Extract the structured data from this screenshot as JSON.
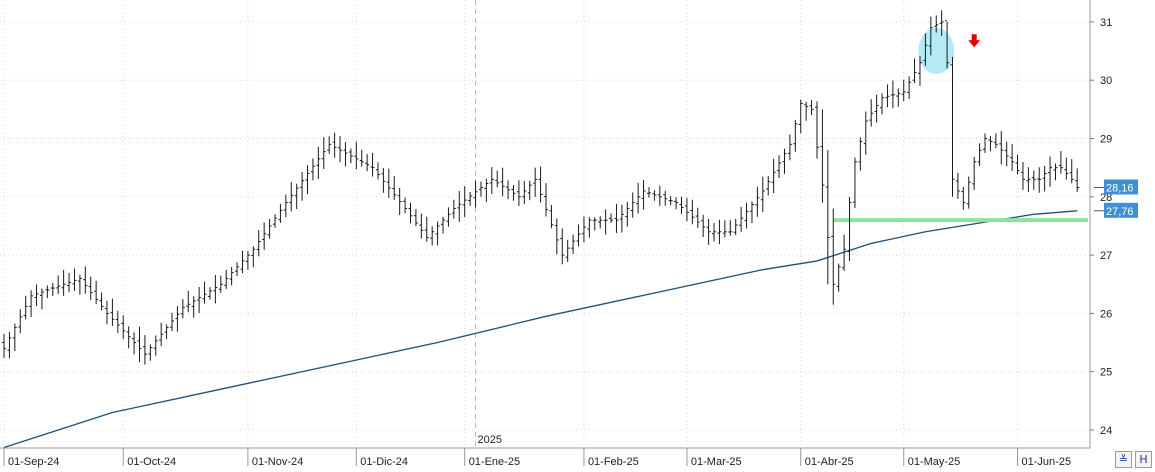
{
  "chart_data": {
    "type": "ohlc",
    "title": "",
    "xlabel": "",
    "ylabel": "",
    "ylim": [
      23.8,
      31.3
    ],
    "y_ticks": [
      "24",
      "25",
      "26",
      "27",
      "28",
      "29",
      "30",
      "31"
    ],
    "x_ticks": [
      {
        "label": "01-Sep-24",
        "i": 0
      },
      {
        "label": "01-Oct-24",
        "i": 22
      },
      {
        "label": "01-Nov-24",
        "i": 45
      },
      {
        "label": "01-Dic-24",
        "i": 65
      },
      {
        "label": "01-Ene-25",
        "i": 85
      },
      {
        "label": "01-Feb-25",
        "i": 107
      },
      {
        "label": "01-Mar-25",
        "i": 126
      },
      {
        "label": "01-Abr-25",
        "i": 147
      },
      {
        "label": "01-May-25",
        "i": 166
      },
      {
        "label": "01-Jun-25",
        "i": 187
      }
    ],
    "year_marker": {
      "label": "2025",
      "i": 87
    },
    "key_points": [
      [
        0,
        25.4
      ],
      [
        5,
        26.3
      ],
      [
        14,
        26.6
      ],
      [
        19,
        26.0
      ],
      [
        26,
        25.3
      ],
      [
        33,
        26.1
      ],
      [
        40,
        26.5
      ],
      [
        46,
        27.1
      ],
      [
        52,
        27.9
      ],
      [
        60,
        28.9
      ],
      [
        68,
        28.5
      ],
      [
        74,
        27.8
      ],
      [
        78,
        27.3
      ],
      [
        83,
        27.8
      ],
      [
        90,
        28.3
      ],
      [
        95,
        28.0
      ],
      [
        98,
        28.3
      ],
      [
        103,
        27.0
      ],
      [
        108,
        27.6
      ],
      [
        113,
        27.6
      ],
      [
        118,
        28.1
      ],
      [
        124,
        27.9
      ],
      [
        130,
        27.4
      ],
      [
        134,
        27.4
      ],
      [
        140,
        28.1
      ],
      [
        145,
        28.9
      ],
      [
        147,
        29.6
      ],
      [
        149,
        29.5
      ],
      [
        151,
        28.2
      ],
      [
        152,
        27.3
      ],
      [
        153,
        26.5
      ],
      [
        155,
        27.1
      ],
      [
        156,
        27.9
      ],
      [
        157,
        28.6
      ],
      [
        159,
        29.3
      ],
      [
        162,
        29.7
      ],
      [
        166,
        29.8
      ],
      [
        169,
        30.3
      ],
      [
        171,
        30.9
      ],
      [
        173,
        31.0
      ],
      [
        174,
        30.3
      ],
      [
        175,
        28.3
      ],
      [
        176,
        28.1
      ],
      [
        177,
        27.9
      ],
      [
        179,
        28.6
      ],
      [
        181,
        29.0
      ],
      [
        183,
        28.9
      ],
      [
        186,
        28.6
      ],
      [
        188,
        28.3
      ],
      [
        191,
        28.3
      ],
      [
        193,
        28.5
      ],
      [
        195,
        28.5
      ],
      [
        197,
        28.3
      ],
      [
        198,
        28.16
      ]
    ],
    "moving_average": [
      [
        0,
        23.7
      ],
      [
        20,
        24.3
      ],
      [
        40,
        24.7
      ],
      [
        60,
        25.1
      ],
      [
        80,
        25.5
      ],
      [
        100,
        25.95
      ],
      [
        120,
        26.35
      ],
      [
        140,
        26.75
      ],
      [
        150,
        26.9
      ],
      [
        160,
        27.2
      ],
      [
        170,
        27.4
      ],
      [
        180,
        27.55
      ],
      [
        190,
        27.7
      ],
      [
        198,
        27.76
      ]
    ],
    "support_line": {
      "from_i": 153,
      "to_i": 200,
      "value": 27.6
    },
    "price_tags": [
      {
        "label": "28,16",
        "value": 28.16
      },
      {
        "label": "27,76",
        "value": 27.76
      }
    ],
    "annotations": {
      "circle": {
        "i": 172,
        "value": 30.5
      },
      "arrow_down": {
        "i": 179,
        "value": 30.65
      }
    },
    "colors": {
      "bars": "#1a1a1a",
      "moving_average": "#1f4f78",
      "support_line": "#8fe29a",
      "price_tag": "#3f8fd4",
      "circle": "#a6e6f5",
      "arrow": "#e00000",
      "grid": "#d9d9d9"
    }
  },
  "controls": {
    "zoom_icon": "double-chevron-down-icon",
    "save_icon": "floppy-disk-icon",
    "zoom_glyph": "≚",
    "save_glyph": "H"
  }
}
